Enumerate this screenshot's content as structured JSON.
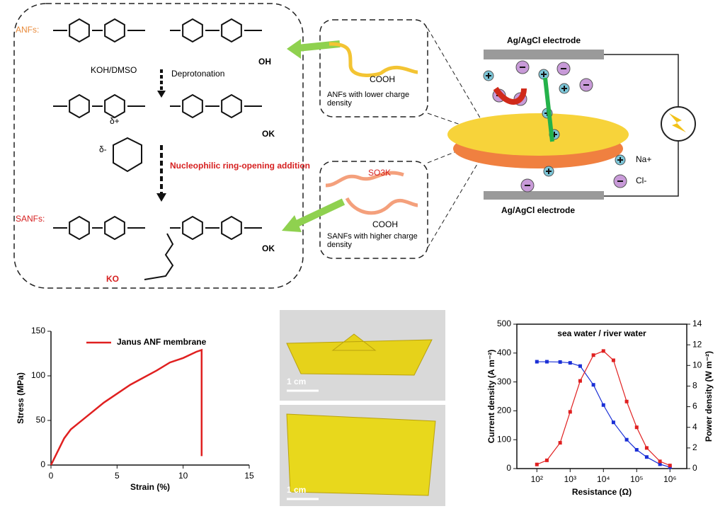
{
  "diagram": {
    "anfs_label": "ANFs:",
    "sanfs_label": "SANFs:",
    "koh": "KOH/DMSO",
    "deprotonation": "Deprotonation",
    "ring_opening": "Nucleophilic ring-opening addition",
    "atoms": [
      "OH",
      "OK",
      "OK",
      "KO",
      "COOH",
      "COOH",
      "SO3K",
      "δ+",
      "δ-"
    ],
    "anfs_note": "ANFs with lower charge density",
    "sanfs_note": "SANFs with higher charge density",
    "electrode_top": "Ag/AgCl electrode",
    "electrode_bottom": "Ag/AgCl electrode",
    "na": "Na+",
    "cl": "Cl-",
    "scale_top": "1 cm",
    "scale_bottom": "1 cm"
  },
  "chart_data": [
    {
      "type": "line",
      "xlabel": "Strain (%)",
      "ylabel": "Stress (MPa)",
      "xlim": [
        0,
        15
      ],
      "ylim": [
        0,
        150
      ],
      "xticks": [
        0,
        5,
        10,
        15
      ],
      "yticks": [
        0,
        50,
        100,
        150
      ],
      "legend": "upper left",
      "x": [
        0,
        0.5,
        1,
        1.5,
        2,
        3,
        4,
        5,
        6,
        7,
        8,
        9,
        10,
        11,
        11.4,
        11.4
      ],
      "series": [
        {
          "name": "Janus ANF membrane",
          "color": "#e02020",
          "values": [
            0,
            15,
            30,
            40,
            46,
            58,
            70,
            80,
            90,
            98,
            106,
            115,
            120,
            127,
            129,
            10
          ]
        }
      ]
    },
    {
      "type": "line",
      "annotation": "sea water / river water",
      "xlabel": "Resistance (Ω)",
      "ylabel": "Current density (A m⁻²)",
      "y2label": "Power density (W m⁻²)",
      "xscale": "log",
      "xlim": [
        25,
        3200000
      ],
      "ylim": [
        0,
        500
      ],
      "y2lim": [
        0,
        14
      ],
      "xticks": [
        {
          "value": 100,
          "label": "10²"
        },
        {
          "value": 1000,
          "label": "10³"
        },
        {
          "value": 10000,
          "label": "10⁴"
        },
        {
          "value": 100000,
          "label": "10⁵"
        },
        {
          "value": 1000000,
          "label": "10⁶"
        }
      ],
      "yticks": [
        0,
        100,
        200,
        300,
        400,
        500
      ],
      "y2ticks": [
        0,
        2,
        4,
        6,
        8,
        10,
        12,
        14
      ],
      "x": [
        100,
        200,
        500,
        1000,
        2000,
        5000,
        10000,
        20000,
        50000,
        100000,
        200000,
        500000,
        1000000
      ],
      "series": [
        {
          "color": "#1a2fd6",
          "axis": "y",
          "values": [
            370,
            370,
            369,
            366,
            355,
            290,
            220,
            160,
            100,
            65,
            40,
            15,
            5
          ]
        },
        {
          "color": "#e02020",
          "axis": "y2",
          "values": [
            0.4,
            0.8,
            2.5,
            5.5,
            8.5,
            11,
            11.4,
            10.5,
            6.5,
            4,
            2,
            0.7,
            0.3
          ]
        }
      ]
    }
  ]
}
